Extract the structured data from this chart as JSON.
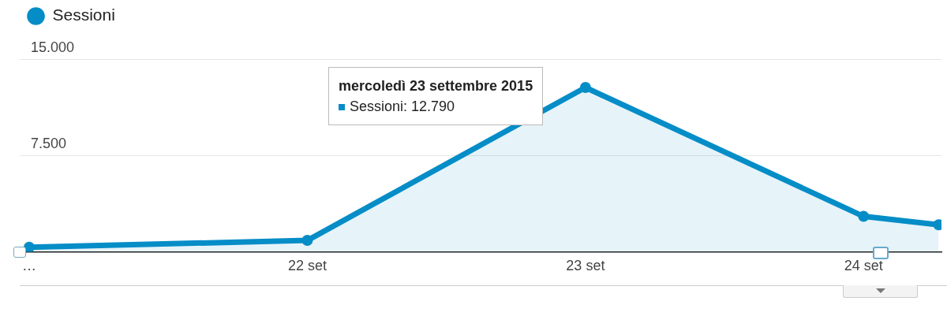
{
  "chart_data": {
    "type": "area",
    "x": [
      21,
      22,
      23,
      24,
      24.27
    ],
    "series": [
      {
        "name": "Sessioni",
        "color": "#058dc7",
        "values": [
          350,
          880,
          12790,
          2750,
          2100
        ]
      }
    ],
    "xlim": [
      20.966,
      24.28
    ],
    "xticks": [
      {
        "value": 21,
        "label": "…"
      },
      {
        "value": 22,
        "label": "22 set"
      },
      {
        "value": 23,
        "label": "23 set"
      },
      {
        "value": 24,
        "label": "24 set"
      }
    ],
    "ylim": [
      0,
      15000
    ],
    "yticks": [
      {
        "value": 0,
        "label": null
      },
      {
        "value": 7500,
        "label": "7.500"
      },
      {
        "value": 15000,
        "label": "15.000"
      }
    ],
    "grid": "y",
    "legend": "top left",
    "marker": "circle",
    "annotations": [
      "mercoledì 23 settembre 2015",
      "Sessioni: 12.790"
    ]
  }
}
